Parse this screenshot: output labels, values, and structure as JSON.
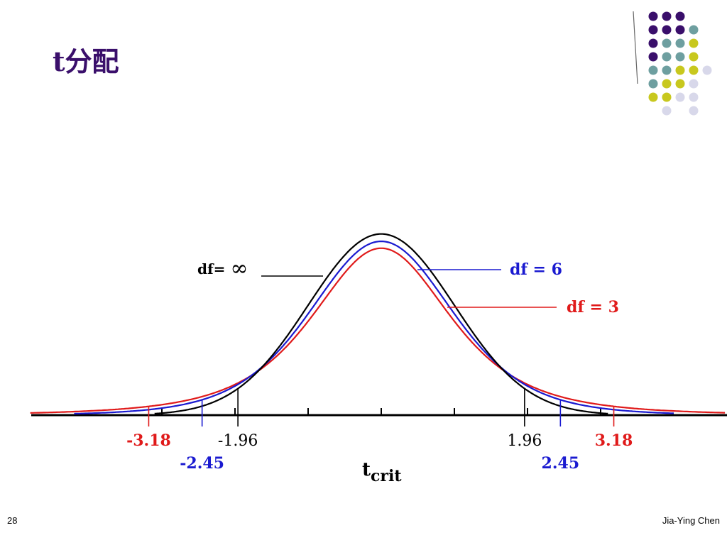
{
  "slide": {
    "title": "t分配",
    "page_number": "28",
    "author": "Jia-Ying Chen"
  },
  "decoration": {
    "colors": [
      "#3a0f6b",
      "#6e9fa0",
      "#c8c81e",
      "#d8d8ea"
    ],
    "dot_grid": [
      [
        0,
        0,
        0,
        -1
      ],
      [
        0,
        0,
        0,
        1
      ],
      [
        0,
        1,
        1,
        2
      ],
      [
        0,
        1,
        1,
        2
      ],
      [
        1,
        1,
        2,
        2,
        3
      ],
      [
        1,
        2,
        2,
        3
      ],
      [
        2,
        2,
        3,
        3
      ],
      [
        -1,
        3,
        -1,
        3
      ]
    ]
  },
  "chart_data": {
    "type": "line",
    "title": "",
    "xlabel": "t",
    "xlabel_sub": "crit",
    "xlim": [
      -4.7,
      4.7
    ],
    "ylim": [
      0,
      0.42
    ],
    "grid": false,
    "series": [
      {
        "name": "df= ∞",
        "df": "inf",
        "color": "#000000",
        "label": "df= ∞",
        "label_prefix": "df= ",
        "label_symbol": "∞"
      },
      {
        "name": "df = 6",
        "df": 6,
        "color": "#1a1ad0",
        "label": "df = 6"
      },
      {
        "name": "df = 3",
        "df": 3,
        "color": "#e01a1a",
        "label": "df = 3"
      }
    ],
    "critical_values": [
      {
        "value": -3.18,
        "label": "-3.18",
        "color": "#e01a1a",
        "row": 0,
        "df": 3
      },
      {
        "value": -1.96,
        "label": "-1.96",
        "color": "#000000",
        "row": 0,
        "df": "inf"
      },
      {
        "value": -2.45,
        "label": "-2.45",
        "color": "#1a1ad0",
        "row": 1,
        "df": 6
      },
      {
        "value": 1.96,
        "label": "1.96",
        "color": "#000000",
        "row": 0,
        "df": "inf"
      },
      {
        "value": 3.18,
        "label": "3.18",
        "color": "#e01a1a",
        "row": 0,
        "df": 3
      },
      {
        "value": 2.45,
        "label": "2.45",
        "color": "#1a1ad0",
        "row": 1,
        "df": 6
      }
    ],
    "axis_ticks": [
      -3,
      -2,
      -1,
      0,
      1,
      2,
      3
    ]
  }
}
